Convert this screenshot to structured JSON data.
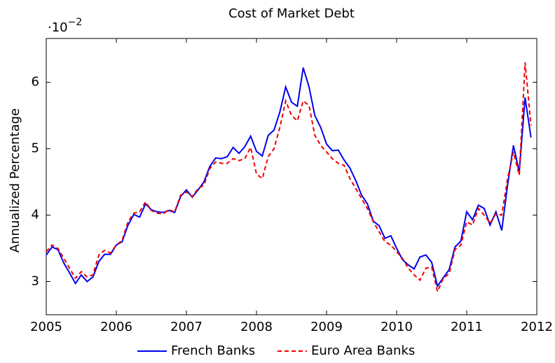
{
  "chart_data": {
    "type": "line",
    "title": "Cost of Market Debt",
    "ylabel": "Annualized Percentage",
    "y_multiplier": {
      "base": "·10",
      "exponent": "−2"
    },
    "xlim": [
      2005,
      2012
    ],
    "xticks": [
      2005,
      2006,
      2007,
      2008,
      2009,
      2010,
      2011,
      2012
    ],
    "ylim": [
      2.5,
      6.66
    ],
    "yticks": [
      3,
      4,
      5,
      6
    ],
    "grid": false,
    "legend": "bottom",
    "x": [
      2005,
      2005.083,
      2005.167,
      2005.25,
      2005.333,
      2005.417,
      2005.5,
      2005.583,
      2005.667,
      2005.75,
      2005.833,
      2005.917,
      2006,
      2006.083,
      2006.167,
      2006.25,
      2006.333,
      2006.417,
      2006.5,
      2006.583,
      2006.667,
      2006.75,
      2006.833,
      2006.917,
      2007,
      2007.083,
      2007.167,
      2007.25,
      2007.333,
      2007.417,
      2007.5,
      2007.583,
      2007.667,
      2007.75,
      2007.833,
      2007.917,
      2008,
      2008.083,
      2008.167,
      2008.25,
      2008.333,
      2008.417,
      2008.5,
      2008.583,
      2008.667,
      2008.75,
      2008.833,
      2008.917,
      2009,
      2009.083,
      2009.167,
      2009.25,
      2009.333,
      2009.417,
      2009.5,
      2009.583,
      2009.667,
      2009.75,
      2009.833,
      2009.917,
      2010,
      2010.083,
      2010.167,
      2010.25,
      2010.333,
      2010.417,
      2010.5,
      2010.583,
      2010.667,
      2010.75,
      2010.833,
      2010.917,
      2011,
      2011.083,
      2011.167,
      2011.25,
      2011.333,
      2011.417,
      2011.5,
      2011.583,
      2011.667,
      2011.75,
      2011.833,
      2011.917
    ],
    "series": [
      {
        "name": "French Banks",
        "color": "#0000ee",
        "dash": "solid",
        "values": [
          3.4,
          3.52,
          3.48,
          3.28,
          3.13,
          2.97,
          3.1,
          3.0,
          3.07,
          3.3,
          3.41,
          3.41,
          3.55,
          3.6,
          3.85,
          4.01,
          3.97,
          4.17,
          4.08,
          4.05,
          4.04,
          4.07,
          4.04,
          4.28,
          4.38,
          4.27,
          4.38,
          4.5,
          4.73,
          4.86,
          4.85,
          4.88,
          5.02,
          4.93,
          5.03,
          5.19,
          4.96,
          4.89,
          5.2,
          5.28,
          5.55,
          5.93,
          5.7,
          5.64,
          6.22,
          5.93,
          5.5,
          5.32,
          5.07,
          4.97,
          4.98,
          4.83,
          4.71,
          4.52,
          4.3,
          4.17,
          3.91,
          3.84,
          3.65,
          3.69,
          3.5,
          3.33,
          3.25,
          3.19,
          3.37,
          3.4,
          3.29,
          2.93,
          3.06,
          3.18,
          3.52,
          3.61,
          4.05,
          3.93,
          4.15,
          4.1,
          3.85,
          4.05,
          3.77,
          4.45,
          5.05,
          4.65,
          5.77,
          5.17
        ]
      },
      {
        "name": "Euro Area Banks",
        "color": "#ee0000",
        "dash": "dashed",
        "values": [
          3.45,
          3.55,
          3.5,
          3.35,
          3.2,
          3.05,
          3.15,
          3.07,
          3.1,
          3.4,
          3.47,
          3.43,
          3.55,
          3.62,
          3.9,
          4.03,
          4.05,
          4.2,
          4.07,
          4.03,
          4.02,
          4.08,
          4.05,
          4.3,
          4.35,
          4.28,
          4.4,
          4.45,
          4.7,
          4.8,
          4.78,
          4.78,
          4.85,
          4.82,
          4.85,
          5.02,
          4.62,
          4.55,
          4.88,
          5.0,
          5.32,
          5.72,
          5.5,
          5.42,
          5.72,
          5.65,
          5.2,
          5.05,
          4.95,
          4.85,
          4.78,
          4.75,
          4.55,
          4.4,
          4.25,
          4.1,
          3.9,
          3.75,
          3.6,
          3.55,
          3.45,
          3.35,
          3.2,
          3.1,
          3.02,
          3.2,
          3.22,
          2.85,
          3.05,
          3.12,
          3.48,
          3.55,
          3.9,
          3.85,
          4.1,
          4.0,
          3.88,
          4.02,
          4.0,
          4.55,
          4.95,
          4.6,
          6.3,
          5.35
        ]
      }
    ]
  }
}
